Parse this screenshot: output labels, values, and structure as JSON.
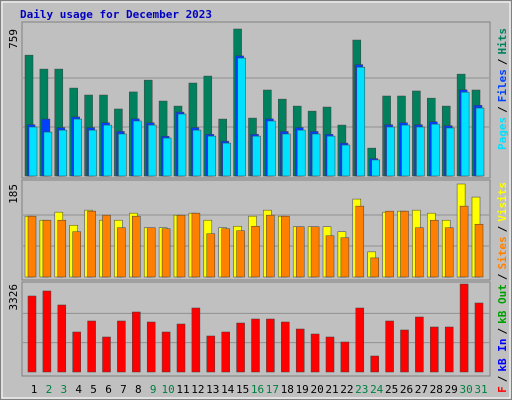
{
  "title": "Daily usage for December 2023",
  "separator": "/",
  "chart_data": [
    {
      "type": "bar",
      "ylim": [
        0,
        759
      ],
      "yticks": [
        759
      ],
      "series": [
        {
          "name": "Hits",
          "color": "#00805c",
          "values": [
            624,
            552,
            552,
            454,
            418,
            418,
            346,
            434,
            495,
            387,
            361,
            480,
            516,
            294,
            759,
            299,
            444,
            397,
            361,
            335,
            356,
            263,
            702,
            144,
            413,
            413,
            439,
            402,
            361,
            526,
            444
          ]
        },
        {
          "name": "Files",
          "color": "#0040ff",
          "values": [
            265,
            294,
            250,
            305,
            250,
            275,
            230,
            295,
            275,
            205,
            330,
            250,
            215,
            180,
            620,
            215,
            295,
            230,
            250,
            230,
            215,
            170,
            575,
            90,
            265,
            275,
            265,
            280,
            260,
            445,
            365
          ]
        },
        {
          "name": "Pages",
          "color": "#00e0ff",
          "values": [
            253,
            227,
            237,
            294,
            237,
            263,
            217,
            284,
            263,
            196,
            320,
            237,
            206,
            170,
            609,
            206,
            284,
            217,
            237,
            217,
            206,
            160,
            562,
            83,
            253,
            263,
            253,
            268,
            248,
            433,
            351
          ]
        }
      ]
    },
    {
      "type": "bar",
      "ylim": [
        0,
        185
      ],
      "yticks": [
        185
      ],
      "series": [
        {
          "name": "Visits",
          "color": "#ffff00",
          "values": [
            121,
            113,
            129,
            103,
            133,
            113,
            113,
            127,
            98,
            98,
            123,
            127,
            113,
            98,
            101,
            121,
            133,
            121,
            100,
            100,
            100,
            90,
            155,
            50,
            129,
            131,
            133,
            127,
            113,
            185,
            159
          ]
        },
        {
          "name": "Sites",
          "color": "#ff8000",
          "values": [
            121,
            113,
            113,
            90,
            131,
            123,
            98,
            121,
            98,
            96,
            123,
            127,
            86,
            96,
            92,
            101,
            123,
            121,
            100,
            100,
            82,
            78,
            141,
            38,
            131,
            131,
            98,
            113,
            98,
            141,
            105
          ]
        }
      ]
    },
    {
      "type": "bar",
      "ylim": [
        0,
        3326
      ],
      "yticks": [
        3326
      ],
      "categories": [
        "1",
        "2",
        "3",
        "4",
        "5",
        "6",
        "7",
        "8",
        "9",
        "10",
        "11",
        "12",
        "13",
        "14",
        "15",
        "16",
        "17",
        "18",
        "19",
        "20",
        "21",
        "22",
        "23",
        "24",
        "25",
        "26",
        "27",
        "28",
        "29",
        "30",
        "31"
      ],
      "category_colors": [
        "#000000",
        "#008040",
        "#008040",
        "#000000",
        "#000000",
        "#000000",
        "#000000",
        "#000000",
        "#008040",
        "#008040",
        "#000000",
        "#000000",
        "#000000",
        "#000000",
        "#000000",
        "#008040",
        "#008040",
        "#000000",
        "#000000",
        "#000000",
        "#000000",
        "#000000",
        "#008040",
        "#008040",
        "#000000",
        "#000000",
        "#000000",
        "#000000",
        "#000000",
        "#008040",
        "#008040"
      ],
      "series": [
        {
          "name": "kB F",
          "color": "#ff0000",
          "values": [
            2873,
            3062,
            2533,
            1512,
            1928,
            1323,
            1928,
            2268,
            1890,
            1512,
            1814,
            2419,
            1361,
            1512,
            1852,
            2003,
            2003,
            1890,
            1625,
            1436,
            1323,
            1134,
            2419,
            605,
            1928,
            1588,
            2079,
            1701,
            1701,
            3326,
            2608
          ]
        }
      ],
      "extra_legend": [
        {
          "name": "kB In",
          "color": "#0000ff"
        },
        {
          "name": "kB Out",
          "color": "#00a000"
        }
      ]
    }
  ]
}
